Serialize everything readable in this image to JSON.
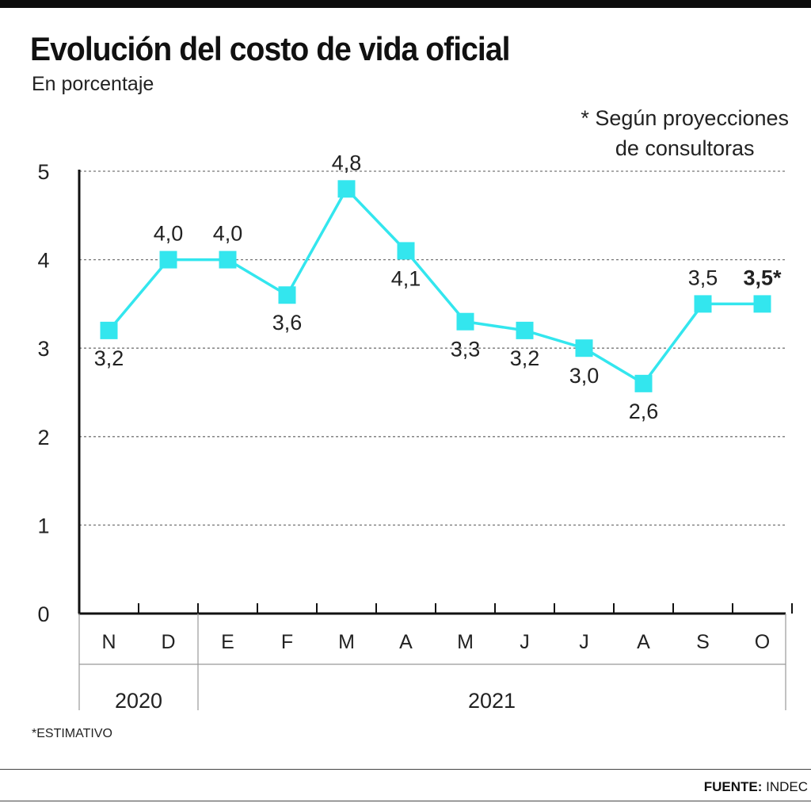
{
  "title": "Evolución del costo de vida oficial",
  "subtitle": "En porcentaje",
  "note": "* Según proyecciones\nde consultoras",
  "footnote": "*ESTIMATIVO",
  "source_label": "FUENTE:",
  "source_value": "INDEC",
  "colors": {
    "line": "#33e6ee",
    "axis": "#111111",
    "grid": "#777777"
  },
  "chart_data": {
    "type": "line",
    "title": "Evolución del costo de vida oficial",
    "subtitle": "En porcentaje",
    "xlabel": "",
    "ylabel": "",
    "ylim": [
      0,
      5
    ],
    "yticks": [
      0,
      1,
      2,
      3,
      4,
      5
    ],
    "grid": true,
    "categories": [
      "N",
      "D",
      "E",
      "F",
      "M",
      "A",
      "M",
      "J",
      "J",
      "A",
      "S",
      "O"
    ],
    "values": [
      3.2,
      4.0,
      4.0,
      3.6,
      4.8,
      4.1,
      3.3,
      3.2,
      3.0,
      2.6,
      3.5,
      3.5
    ],
    "data_labels": [
      "3,2",
      "4,0",
      "4,0",
      "3,6",
      "4,8",
      "4,1",
      "3,3",
      "3,2",
      "3,0",
      "2,6",
      "3,5",
      "3,5*"
    ],
    "label_position": [
      "below",
      "above",
      "above",
      "below",
      "above",
      "below",
      "below",
      "below",
      "below",
      "below",
      "above",
      "above"
    ],
    "estimated": [
      false,
      false,
      false,
      false,
      false,
      false,
      false,
      false,
      false,
      false,
      false,
      true
    ],
    "year_groups": [
      {
        "label": "2020",
        "count": 2
      },
      {
        "label": "2021",
        "count": 10
      }
    ]
  }
}
